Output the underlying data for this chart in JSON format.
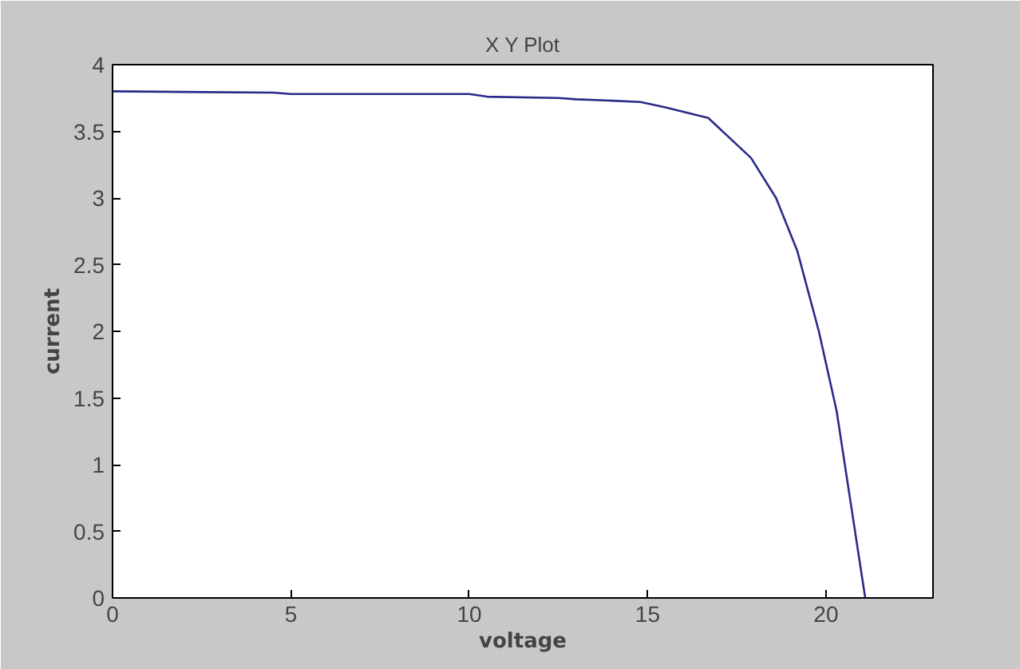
{
  "chart_data": {
    "type": "line",
    "title": "X Y Plot",
    "xlabel": "voltage",
    "ylabel": "current",
    "xlim": [
      0,
      23
    ],
    "xticks": [
      0,
      5,
      10,
      15,
      20
    ],
    "ylim": [
      0,
      4
    ],
    "yticks": [
      0,
      0.5,
      1,
      1.5,
      2,
      2.5,
      3,
      3.5,
      4
    ],
    "grid": false,
    "series": [
      {
        "color": "#2a2a8a",
        "x": [
          0,
          4.5,
          5,
          10,
          10.5,
          12.5,
          13,
          14,
          14.8,
          15.5,
          16.7,
          17.9,
          18.6,
          19.2,
          19.8,
          20.3,
          20.7,
          21.1
        ],
        "values": [
          3.8,
          3.79,
          3.78,
          3.78,
          3.76,
          3.75,
          3.74,
          3.73,
          3.72,
          3.68,
          3.6,
          3.3,
          3.0,
          2.6,
          2.0,
          1.4,
          0.7,
          0
        ]
      }
    ]
  }
}
